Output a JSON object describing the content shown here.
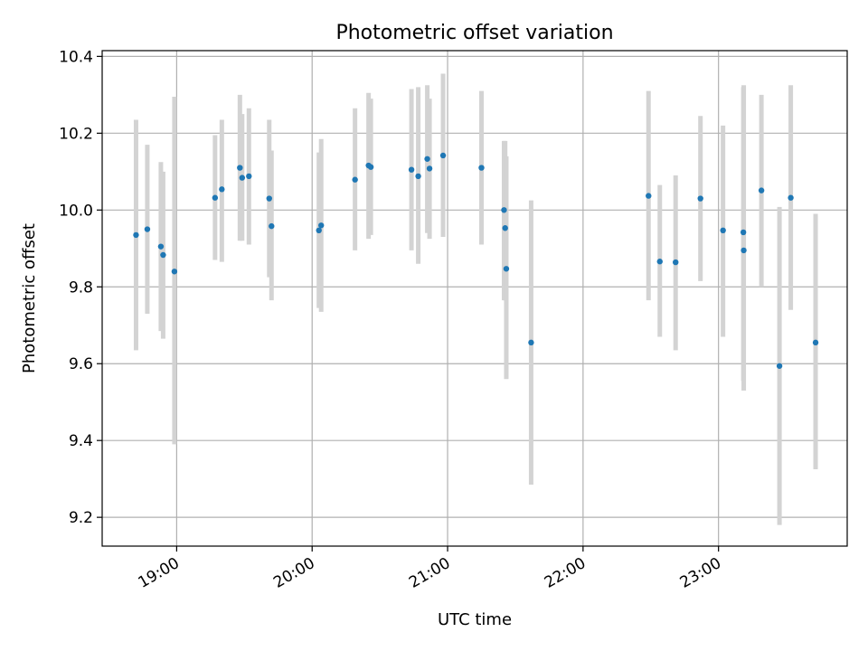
{
  "chart_data": {
    "type": "scatter",
    "title": "Photometric offset variation",
    "xlabel": "UTC time",
    "ylabel": "Photometric offset",
    "xlim": [
      "18:27",
      "23:57"
    ],
    "ylim": [
      9.125,
      10.415
    ],
    "x_ticks": [
      "19:00",
      "20:00",
      "21:00",
      "22:00",
      "23:00"
    ],
    "y_ticks": [
      9.2,
      9.4,
      9.6,
      9.8,
      10.0,
      10.2,
      10.4
    ],
    "y_tick_labels": [
      "9.2",
      "9.4",
      "9.6",
      "9.8",
      "10.0",
      "10.2",
      "10.4"
    ],
    "grid": true,
    "colors": {
      "point": "#1f77b4",
      "errorbar": "#d3d3d3",
      "grid": "#b0b0b0"
    },
    "series": [
      {
        "points": [
          {
            "x": "18:42",
            "y": 9.935,
            "lo": 9.635,
            "hi": 10.235
          },
          {
            "x": "18:47",
            "y": 9.95,
            "lo": 9.73,
            "hi": 10.17
          },
          {
            "x": "18:53",
            "y": 9.905,
            "lo": 9.685,
            "hi": 10.125
          },
          {
            "x": "18:54",
            "y": 9.883,
            "lo": 9.665,
            "hi": 10.1
          },
          {
            "x": "18:59",
            "y": 9.84,
            "lo": 9.39,
            "hi": 10.295
          },
          {
            "x": "19:17",
            "y": 10.032,
            "lo": 9.87,
            "hi": 10.195
          },
          {
            "x": "19:20",
            "y": 10.054,
            "lo": 9.865,
            "hi": 10.235
          },
          {
            "x": "19:28",
            "y": 10.11,
            "lo": 9.92,
            "hi": 10.3
          },
          {
            "x": "19:29",
            "y": 10.084,
            "lo": 9.92,
            "hi": 10.25
          },
          {
            "x": "19:32",
            "y": 10.088,
            "lo": 9.91,
            "hi": 10.265
          },
          {
            "x": "19:41",
            "y": 10.03,
            "lo": 9.825,
            "hi": 10.235
          },
          {
            "x": "19:42",
            "y": 9.958,
            "lo": 9.765,
            "hi": 10.155
          },
          {
            "x": "20:03",
            "y": 9.947,
            "lo": 9.745,
            "hi": 10.15
          },
          {
            "x": "20:04",
            "y": 9.96,
            "lo": 9.735,
            "hi": 10.185
          },
          {
            "x": "20:19",
            "y": 10.079,
            "lo": 9.895,
            "hi": 10.265
          },
          {
            "x": "20:25",
            "y": 10.116,
            "lo": 9.925,
            "hi": 10.305
          },
          {
            "x": "20:26",
            "y": 10.112,
            "lo": 9.935,
            "hi": 10.29
          },
          {
            "x": "20:44",
            "y": 10.105,
            "lo": 9.895,
            "hi": 10.315
          },
          {
            "x": "20:47",
            "y": 10.088,
            "lo": 9.86,
            "hi": 10.32
          },
          {
            "x": "20:51",
            "y": 10.133,
            "lo": 9.94,
            "hi": 10.325
          },
          {
            "x": "20:52",
            "y": 10.108,
            "lo": 9.925,
            "hi": 10.29
          },
          {
            "x": "20:58",
            "y": 10.142,
            "lo": 9.93,
            "hi": 10.355
          },
          {
            "x": "21:15",
            "y": 10.11,
            "lo": 9.91,
            "hi": 10.31
          },
          {
            "x": "21:25",
            "y": 10.0,
            "lo": 9.765,
            "hi": 10.18
          },
          {
            "x": "21:25:30",
            "y": 9.953,
            "lo": 9.765,
            "hi": 10.18
          },
          {
            "x": "21:26",
            "y": 9.847,
            "lo": 9.56,
            "hi": 10.14
          },
          {
            "x": "21:37",
            "y": 9.655,
            "lo": 9.285,
            "hi": 10.025
          },
          {
            "x": "22:29",
            "y": 10.037,
            "lo": 9.765,
            "hi": 10.31
          },
          {
            "x": "22:34",
            "y": 9.866,
            "lo": 9.67,
            "hi": 10.065
          },
          {
            "x": "22:41",
            "y": 9.864,
            "lo": 9.635,
            "hi": 10.09
          },
          {
            "x": "22:52",
            "y": 10.03,
            "lo": 9.815,
            "hi": 10.245
          },
          {
            "x": "23:02",
            "y": 9.947,
            "lo": 9.67,
            "hi": 10.22
          },
          {
            "x": "23:11",
            "y": 9.942,
            "lo": 9.555,
            "hi": 10.32
          },
          {
            "x": "23:11:10",
            "y": 9.895,
            "lo": 9.53,
            "hi": 10.325
          },
          {
            "x": "23:19",
            "y": 10.051,
            "lo": 9.8,
            "hi": 10.3
          },
          {
            "x": "23:27",
            "y": 9.594,
            "lo": 9.18,
            "hi": 10.008
          },
          {
            "x": "23:32",
            "y": 10.032,
            "lo": 9.74,
            "hi": 10.325
          },
          {
            "x": "23:43",
            "y": 9.655,
            "lo": 9.325,
            "hi": 9.99
          }
        ]
      }
    ]
  }
}
